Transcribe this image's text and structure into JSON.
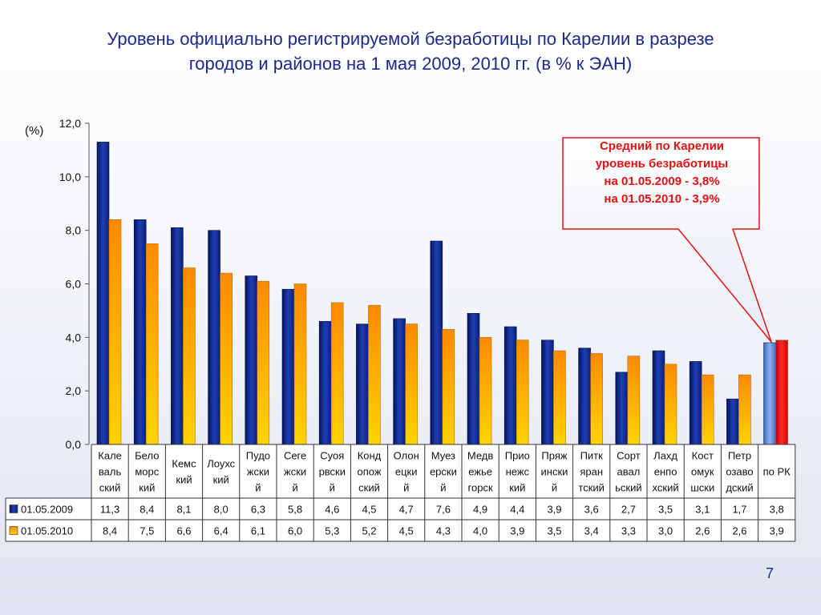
{
  "slide": {
    "title_line1": "Уровень официально регистрируемой безработицы по Карелии в разрезе",
    "title_line2": "городов и районов на 1 мая 2009, 2010 гг. (в % к ЭАН)",
    "page_number": "7"
  },
  "callout": {
    "line1": "Средний по Карелии",
    "line2": "уровень безработицы",
    "line3": "на 01.05.2009 - 3,8%",
    "line4": "на 01.05.2010 - 3,9%"
  },
  "colors": {
    "series_2009": "#0e2a8c",
    "series_2010": "#ffa600",
    "highlight_bar": "#e8101c",
    "callout_border": "#e21212"
  },
  "chart_data": {
    "type": "bar",
    "ylabel": "(%)",
    "ylim": [
      0,
      12
    ],
    "yticks": [
      "0,0",
      "2,0",
      "4,0",
      "6,0",
      "8,0",
      "10,0",
      "12,0"
    ],
    "grid": false,
    "legend": "data-table-left",
    "categories": [
      [
        "Кале",
        "валь",
        "ский"
      ],
      [
        "Бело",
        "морс",
        "кий"
      ],
      [
        "Кемс",
        "кий"
      ],
      [
        "Лоухс",
        "кий"
      ],
      [
        "Пудо",
        "жски",
        "й"
      ],
      [
        "Сеге",
        "жски",
        "й"
      ],
      [
        "Суоя",
        "рвски",
        "й"
      ],
      [
        "Конд",
        "опож",
        "ский"
      ],
      [
        "Олон",
        "ецки",
        "й"
      ],
      [
        "Муез",
        "ерски",
        "й"
      ],
      [
        "Медв",
        "ежье",
        "горск"
      ],
      [
        "Прио",
        "нежс",
        "кий"
      ],
      [
        "Пряж",
        "ински",
        "й"
      ],
      [
        "Питк",
        "яран",
        "тский"
      ],
      [
        "Сорт",
        "авал",
        "ьский"
      ],
      [
        "Лахд",
        "енпо",
        "хский"
      ],
      [
        "Кост",
        "омук",
        "шски"
      ],
      [
        "Петр",
        "озаво",
        "дский"
      ],
      [
        "по РК"
      ]
    ],
    "series": [
      {
        "name": "01.05.2009",
        "values": [
          11.3,
          8.4,
          8.1,
          8.0,
          6.3,
          5.8,
          4.6,
          4.5,
          4.7,
          7.6,
          4.9,
          4.4,
          3.9,
          3.6,
          2.7,
          3.5,
          3.1,
          1.7,
          3.8
        ],
        "labels": [
          "11,3",
          "8,4",
          "8,1",
          "8,0",
          "6,3",
          "5,8",
          "4,6",
          "4,5",
          "4,7",
          "7,6",
          "4,9",
          "4,4",
          "3,9",
          "3,6",
          "2,7",
          "3,5",
          "3,1",
          "1,7",
          "3,8"
        ]
      },
      {
        "name": "01.05.2010",
        "values": [
          8.4,
          7.5,
          6.6,
          6.4,
          6.1,
          6.0,
          5.3,
          5.2,
          4.5,
          4.3,
          4.0,
          3.9,
          3.5,
          3.4,
          3.3,
          3.0,
          2.6,
          2.6,
          3.9
        ],
        "labels": [
          "8,4",
          "7,5",
          "6,6",
          "6,4",
          "6,1",
          "6,0",
          "5,3",
          "5,2",
          "4,5",
          "4,3",
          "4,0",
          "3,9",
          "3,5",
          "3,4",
          "3,3",
          "3,0",
          "2,6",
          "2,6",
          "3,9"
        ]
      }
    ]
  }
}
